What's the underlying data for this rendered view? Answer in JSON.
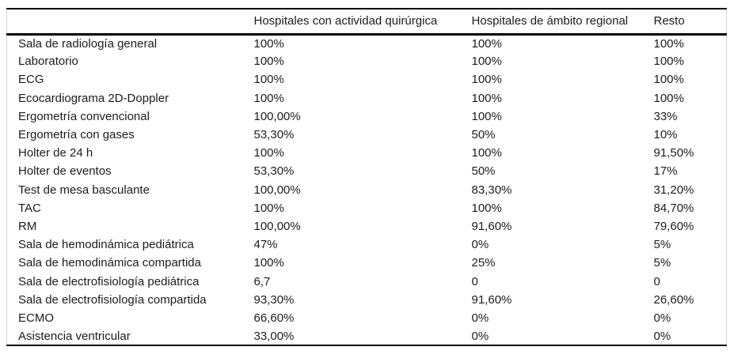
{
  "table": {
    "columns": [
      "",
      "Hospitales con actividad quirúrgica",
      "Hospitales de ámbito regional",
      "Resto"
    ],
    "rows": [
      {
        "label": "Sala de radiología general",
        "values": [
          "100%",
          "100%",
          "100%"
        ]
      },
      {
        "label": "Laboratorio",
        "values": [
          "100%",
          "100%",
          "100%"
        ]
      },
      {
        "label": "ECG",
        "values": [
          "100%",
          "100%",
          "100%"
        ]
      },
      {
        "label": "Ecocardiograma 2D-Doppler",
        "values": [
          "100%",
          "100%",
          "100%"
        ]
      },
      {
        "label": "Ergometría convencional",
        "values": [
          "100,00%",
          "100%",
          "33%"
        ]
      },
      {
        "label": "Ergometría con gases",
        "values": [
          "53,30%",
          "50%",
          "10%"
        ]
      },
      {
        "label": "Holter de 24 h",
        "values": [
          "100%",
          "100%",
          "91,50%"
        ]
      },
      {
        "label": "Holter de eventos",
        "values": [
          "53,30%",
          "50%",
          "17%"
        ]
      },
      {
        "label": "Test de mesa basculante",
        "values": [
          "100,00%",
          "83,30%",
          "31,20%"
        ]
      },
      {
        "label": "TAC",
        "values": [
          "100%",
          "100%",
          "84,70%"
        ]
      },
      {
        "label": "RM",
        "values": [
          "100,00%",
          "91,60%",
          "79,60%"
        ]
      },
      {
        "label": "Sala de hemodinámica pediátrica",
        "values": [
          "47%",
          "0%",
          "5%"
        ]
      },
      {
        "label": "Sala de hemodinámica compartida",
        "values": [
          "100%",
          "25%",
          "5%"
        ]
      },
      {
        "label": "Sala de electrofisiología pediátrica",
        "values": [
          "6,7",
          "0",
          "0"
        ]
      },
      {
        "label": "Sala de electrofisiología compartida",
        "values": [
          "93,30%",
          "91,60%",
          "26,60%"
        ]
      },
      {
        "label": "ECMO",
        "values": [
          "66,60%",
          "0%",
          "0%"
        ]
      },
      {
        "label": "Asistencia ventricular",
        "values": [
          "33,00%",
          "0%",
          "0%"
        ]
      }
    ]
  },
  "colors": {
    "border_dark": "#000000",
    "border_light": "#d9d9d9",
    "text": "#1c1c1c",
    "background": "#ffffff"
  }
}
